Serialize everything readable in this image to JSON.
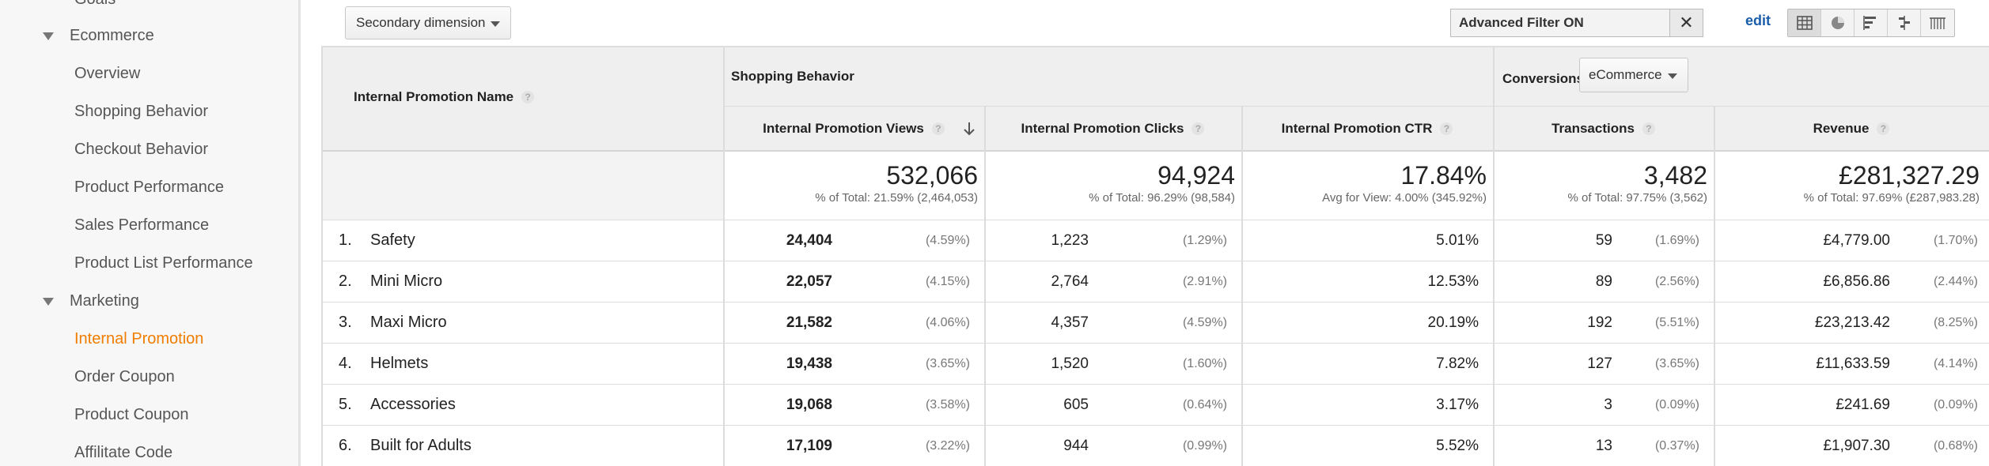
{
  "sidebar": {
    "items": [
      {
        "label": "Goals"
      },
      {
        "label": "Ecommerce"
      },
      {
        "label": "Overview"
      },
      {
        "label": "Shopping Behavior"
      },
      {
        "label": "Checkout Behavior"
      },
      {
        "label": "Product Performance"
      },
      {
        "label": "Sales Performance"
      },
      {
        "label": "Product List Performance"
      },
      {
        "label": "Marketing"
      },
      {
        "label": "Internal Promotion"
      },
      {
        "label": "Order Coupon"
      },
      {
        "label": "Product Coupon"
      },
      {
        "label": "Affilitate Code"
      }
    ]
  },
  "toolbar": {
    "secondary_dimension": "Secondary dimension",
    "advanced_filter": "Advanced Filter ON",
    "close_symbol": "✕",
    "edit": "edit",
    "view_icons": [
      "table-view-icon",
      "pie-view-icon",
      "performance-view-icon",
      "comparison-view-icon",
      "pivot-view-icon"
    ]
  },
  "table": {
    "dim_header": "Internal Promotion Name",
    "group_shopping": "Shopping Behavior",
    "group_conversions": "Conversions",
    "conversions_select": "eCommerce",
    "columns": [
      {
        "label": "Internal Promotion Views"
      },
      {
        "label": "Internal Promotion Clicks"
      },
      {
        "label": "Internal Promotion CTR"
      },
      {
        "label": "Transactions"
      },
      {
        "label": "Revenue"
      }
    ],
    "totals": [
      {
        "value": "532,066",
        "sub": "% of Total: 21.59% (2,464,053)"
      },
      {
        "value": "94,924",
        "sub": "% of Total: 96.29% (98,584)"
      },
      {
        "value": "17.84%",
        "sub": "Avg for View: 4.00% (345.92%)"
      },
      {
        "value": "3,482",
        "sub": "% of Total: 97.75% (3,562)"
      },
      {
        "value": "£281,327.29",
        "sub": "% of Total: 97.69% (£287,983.28)"
      }
    ],
    "rows": [
      {
        "idx": "1.",
        "name": "Safety",
        "views": "24,404",
        "views_pct": "(4.59%)",
        "clicks": "1,223",
        "clicks_pct": "(1.29%)",
        "ctr": "5.01%",
        "trans": "59",
        "trans_pct": "(1.69%)",
        "rev": "£4,779.00",
        "rev_pct": "(1.70%)"
      },
      {
        "idx": "2.",
        "name": "Mini Micro",
        "views": "22,057",
        "views_pct": "(4.15%)",
        "clicks": "2,764",
        "clicks_pct": "(2.91%)",
        "ctr": "12.53%",
        "trans": "89",
        "trans_pct": "(2.56%)",
        "rev": "£6,856.86",
        "rev_pct": "(2.44%)"
      },
      {
        "idx": "3.",
        "name": "Maxi Micro",
        "views": "21,582",
        "views_pct": "(4.06%)",
        "clicks": "4,357",
        "clicks_pct": "(4.59%)",
        "ctr": "20.19%",
        "trans": "192",
        "trans_pct": "(5.51%)",
        "rev": "£23,213.42",
        "rev_pct": "(8.25%)"
      },
      {
        "idx": "4.",
        "name": "Helmets",
        "views": "19,438",
        "views_pct": "(3.65%)",
        "clicks": "1,520",
        "clicks_pct": "(1.60%)",
        "ctr": "7.82%",
        "trans": "127",
        "trans_pct": "(3.65%)",
        "rev": "£11,633.59",
        "rev_pct": "(4.14%)"
      },
      {
        "idx": "5.",
        "name": "Accessories",
        "views": "19,068",
        "views_pct": "(3.58%)",
        "clicks": "605",
        "clicks_pct": "(0.64%)",
        "ctr": "3.17%",
        "trans": "3",
        "trans_pct": "(0.09%)",
        "rev": "£241.69",
        "rev_pct": "(0.09%)"
      },
      {
        "idx": "6.",
        "name": "Built for Adults",
        "views": "17,109",
        "views_pct": "(3.22%)",
        "clicks": "944",
        "clicks_pct": "(0.99%)",
        "ctr": "5.52%",
        "trans": "13",
        "trans_pct": "(0.37%)",
        "rev": "£1,907.30",
        "rev_pct": "(0.68%)"
      }
    ]
  },
  "colors": {
    "active_nav": "#f07c00",
    "link": "#1a5dab"
  }
}
